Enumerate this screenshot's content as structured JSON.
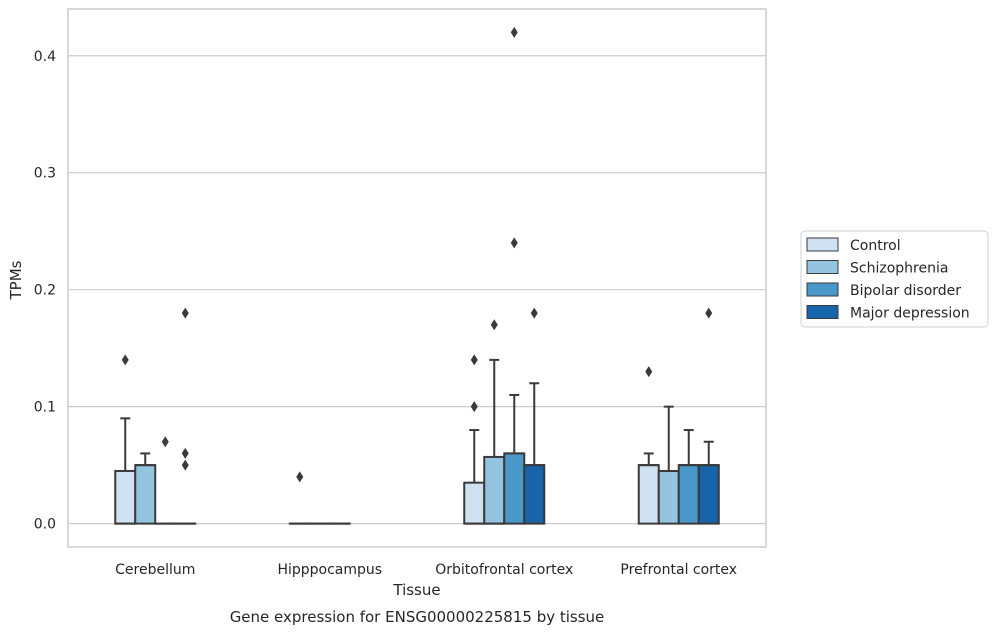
{
  "colors": {
    "grid": "#cccccc",
    "frame": "#cccccc",
    "line": "#3a3a3a",
    "series": [
      "#d0e1f2",
      "#94c4df",
      "#4a98c9",
      "#1764ab"
    ]
  },
  "chart_data": {
    "type": "box",
    "title": "",
    "caption": "Gene expression for ENSG00000225815 by tissue",
    "xlabel": "Tissue",
    "ylabel": "TPMs",
    "ylim": [
      -0.02,
      0.44
    ],
    "yticks": [
      0.0,
      0.1,
      0.2,
      0.3,
      0.4
    ],
    "ytick_labels": [
      "0.0",
      "0.1",
      "0.2",
      "0.3",
      "0.4"
    ],
    "grid": true,
    "legend_position": "right",
    "categories": [
      "Cerebellum",
      "Hipppocampus",
      "Orbitofrontal cortex",
      "Prefrontal cortex"
    ],
    "series": [
      {
        "name": "Control",
        "boxes": [
          {
            "q1": 0.0,
            "median": 0.0,
            "q3": 0.045,
            "whisker_low": 0.0,
            "whisker_high": 0.09,
            "outliers": [
              0.14
            ]
          },
          {
            "q1": 0.0,
            "median": 0.0,
            "q3": 0.0,
            "whisker_low": 0.0,
            "whisker_high": 0.0,
            "outliers": [
              0.04
            ]
          },
          {
            "q1": 0.0,
            "median": 0.0,
            "q3": 0.035,
            "whisker_low": 0.0,
            "whisker_high": 0.08,
            "outliers": [
              0.1,
              0.14
            ]
          },
          {
            "q1": 0.0,
            "median": 0.05,
            "q3": 0.05,
            "whisker_low": 0.0,
            "whisker_high": 0.06,
            "outliers": [
              0.13
            ]
          }
        ]
      },
      {
        "name": "Schizophrenia",
        "boxes": [
          {
            "q1": 0.0,
            "median": 0.05,
            "q3": 0.05,
            "whisker_low": 0.0,
            "whisker_high": 0.06,
            "outliers": []
          },
          {
            "q1": 0.0,
            "median": 0.0,
            "q3": 0.0,
            "whisker_low": 0.0,
            "whisker_high": 0.0,
            "outliers": []
          },
          {
            "q1": 0.0,
            "median": 0.0,
            "q3": 0.057,
            "whisker_low": 0.0,
            "whisker_high": 0.14,
            "outliers": [
              0.17
            ]
          },
          {
            "q1": 0.0,
            "median": 0.045,
            "q3": 0.045,
            "whisker_low": 0.0,
            "whisker_high": 0.1,
            "outliers": []
          }
        ]
      },
      {
        "name": "Bipolar disorder",
        "boxes": [
          {
            "q1": 0.0,
            "median": 0.0,
            "q3": 0.0,
            "whisker_low": 0.0,
            "whisker_high": 0.0,
            "outliers": [
              0.07
            ]
          },
          {
            "q1": 0.0,
            "median": 0.0,
            "q3": 0.0,
            "whisker_low": 0.0,
            "whisker_high": 0.0,
            "outliers": []
          },
          {
            "q1": 0.0,
            "median": 0.06,
            "q3": 0.06,
            "whisker_low": 0.0,
            "whisker_high": 0.11,
            "outliers": [
              0.24,
              0.42
            ]
          },
          {
            "q1": 0.0,
            "median": 0.05,
            "q3": 0.05,
            "whisker_low": 0.0,
            "whisker_high": 0.08,
            "outliers": []
          }
        ]
      },
      {
        "name": "Major depression",
        "boxes": [
          {
            "q1": 0.0,
            "median": 0.0,
            "q3": 0.0,
            "whisker_low": 0.0,
            "whisker_high": 0.0,
            "outliers": [
              0.05,
              0.06,
              0.18
            ]
          },
          null,
          {
            "q1": 0.0,
            "median": 0.05,
            "q3": 0.05,
            "whisker_low": 0.0,
            "whisker_high": 0.12,
            "outliers": [
              0.18
            ]
          },
          {
            "q1": 0.0,
            "median": 0.05,
            "q3": 0.05,
            "whisker_low": 0.0,
            "whisker_high": 0.07,
            "outliers": [
              0.18
            ]
          }
        ]
      }
    ]
  }
}
